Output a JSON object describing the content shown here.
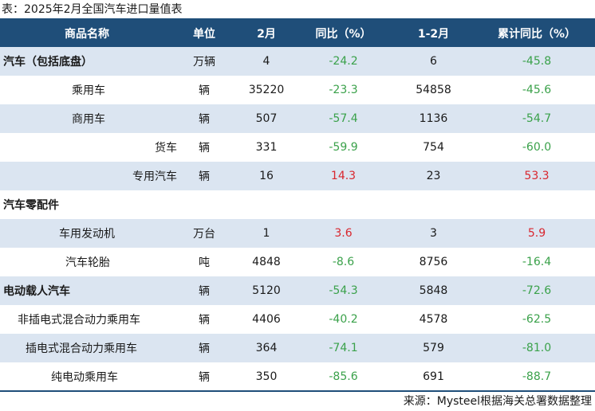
{
  "title": "表：2025年2月全国汽车进口量值表",
  "columns": [
    "商品名称",
    "单位",
    "2月",
    "同比（%）",
    "1-2月",
    "累计同比（%）"
  ],
  "rows": [
    {
      "name": "汽车（包括底盘）",
      "unit": "万辆",
      "feb": "4",
      "feb_yoy": "-24.2",
      "ytd": "6",
      "ytd_yoy": "-45.8"
    },
    {
      "name": "乘用车",
      "unit": "辆",
      "feb": "35220",
      "feb_yoy": "-23.3",
      "ytd": "54858",
      "ytd_yoy": "-45.6"
    },
    {
      "name": "商用车",
      "unit": "辆",
      "feb": "507",
      "feb_yoy": "-57.4",
      "ytd": "1136",
      "ytd_yoy": "-54.7"
    },
    {
      "name": "货车",
      "unit": "辆",
      "feb": "331",
      "feb_yoy": "-59.9",
      "ytd": "754",
      "ytd_yoy": "-60.0"
    },
    {
      "name": "专用汽车",
      "unit": "辆",
      "feb": "16",
      "feb_yoy": "14.3",
      "ytd": "23",
      "ytd_yoy": "53.3"
    },
    {
      "name": "汽车零配件",
      "unit": "",
      "feb": "",
      "feb_yoy": "",
      "ytd": "",
      "ytd_yoy": ""
    },
    {
      "name": "车用发动机",
      "unit": "万台",
      "feb": "1",
      "feb_yoy": "3.6",
      "ytd": "3",
      "ytd_yoy": "5.9"
    },
    {
      "name": "汽车轮胎",
      "unit": "吨",
      "feb": "4848",
      "feb_yoy": "-8.6",
      "ytd": "8756",
      "ytd_yoy": "-16.4"
    },
    {
      "name": "电动载人汽车",
      "unit": "辆",
      "feb": "5120",
      "feb_yoy": "-54.3",
      "ytd": "5848",
      "ytd_yoy": "-72.6"
    },
    {
      "name": "非插电式混合动力乘用车",
      "unit": "辆",
      "feb": "4406",
      "feb_yoy": "-40.2",
      "ytd": "4578",
      "ytd_yoy": "-62.5"
    },
    {
      "name": "插电式混合动力乘用车",
      "unit": "辆",
      "feb": "364",
      "feb_yoy": "-74.1",
      "ytd": "579",
      "ytd_yoy": "-81.0"
    },
    {
      "name": "纯电动乘用车",
      "unit": "辆",
      "feb": "350",
      "feb_yoy": "-85.6",
      "ytd": "691",
      "ytd_yoy": "-88.7"
    }
  ],
  "source": "来源：Mysteel根据海关总署数据整理",
  "colors": {
    "header_bg": "#1f4e79",
    "row_shade": "#dbe5f1",
    "negative": "#3aa14a",
    "positive": "#d9262e"
  }
}
